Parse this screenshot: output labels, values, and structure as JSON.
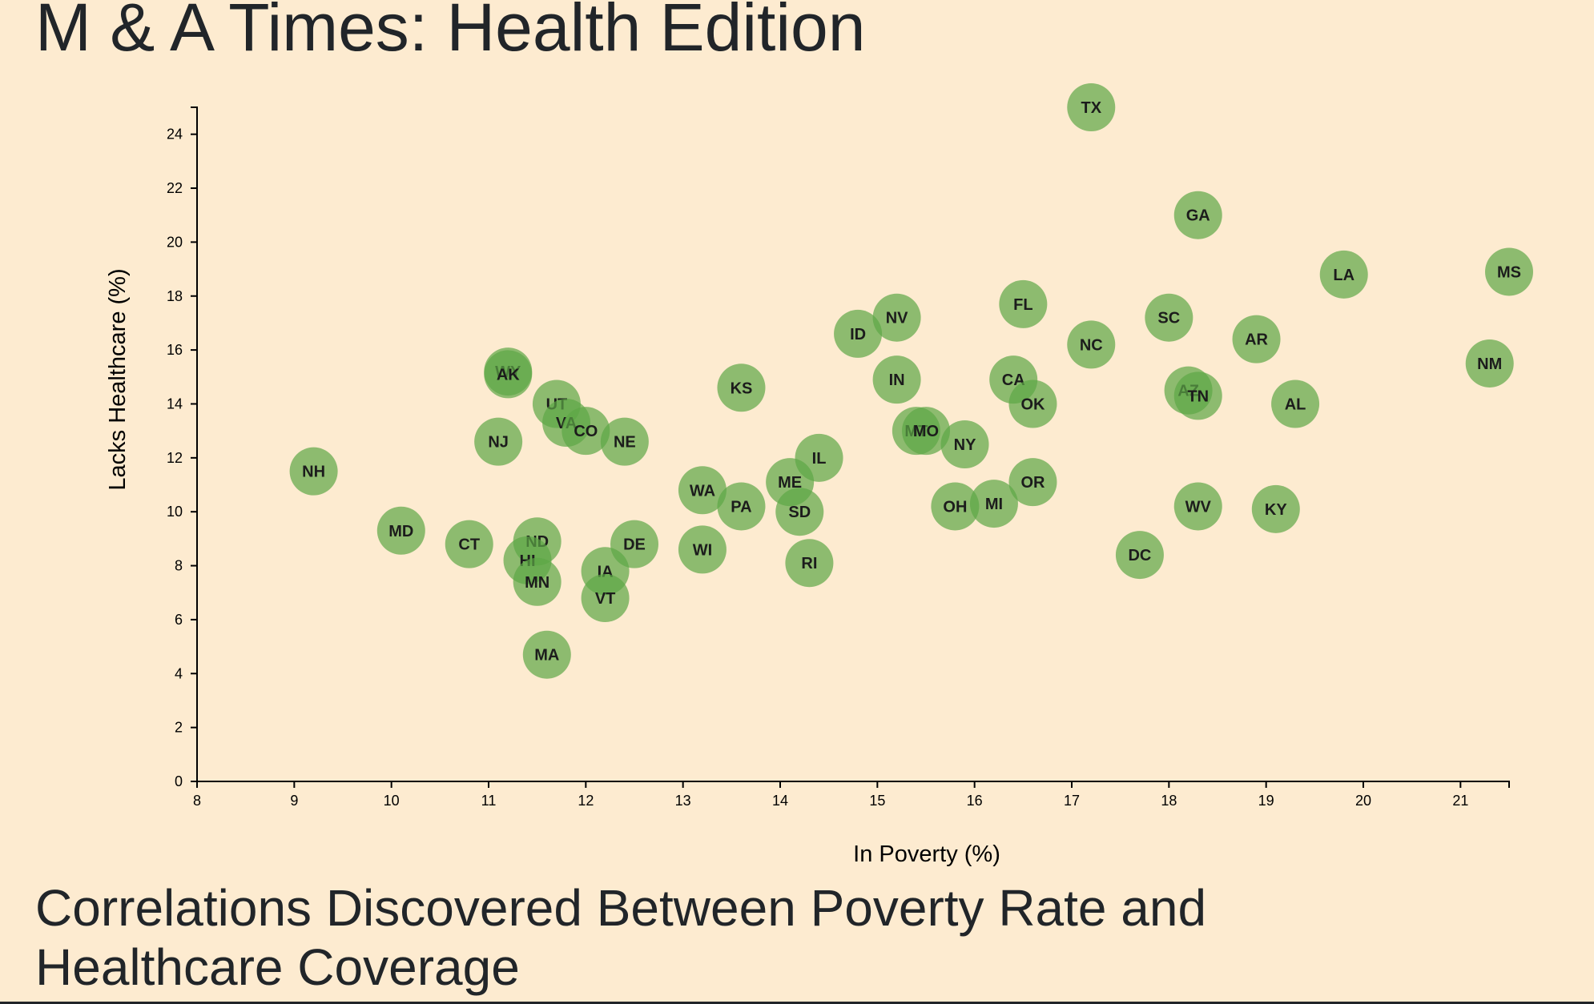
{
  "page": {
    "title": "M & A Times: Health Edition",
    "subheading": "Correlations Discovered Between Poverty Rate and Healthcare Coverage"
  },
  "colors": {
    "background": "#fdebd0",
    "point_fill": "#5ca646",
    "point_opacity": 0.7,
    "text": "#212529"
  },
  "chart_data": {
    "type": "scatter",
    "title": "",
    "xlabel": "In Poverty (%)",
    "ylabel": "Lacks Healthcare (%)",
    "xlim": [
      8,
      21.5
    ],
    "ylim": [
      0,
      25
    ],
    "xticks": [
      8,
      9,
      10,
      11,
      12,
      13,
      14,
      15,
      16,
      17,
      18,
      19,
      20,
      21
    ],
    "yticks": [
      0,
      2,
      4,
      6,
      8,
      10,
      12,
      14,
      16,
      18,
      20,
      22,
      24
    ],
    "grid": false,
    "legend": "none",
    "points": [
      {
        "label": "TX",
        "x": 17.2,
        "y": 25.0
      },
      {
        "label": "GA",
        "x": 18.3,
        "y": 21.0
      },
      {
        "label": "LA",
        "x": 19.8,
        "y": 18.8
      },
      {
        "label": "MS",
        "x": 21.5,
        "y": 18.9
      },
      {
        "label": "FL",
        "x": 16.5,
        "y": 17.7
      },
      {
        "label": "SC",
        "x": 18.0,
        "y": 17.2
      },
      {
        "label": "NV",
        "x": 15.2,
        "y": 17.2
      },
      {
        "label": "ID",
        "x": 14.8,
        "y": 16.6
      },
      {
        "label": "NC",
        "x": 17.2,
        "y": 16.2
      },
      {
        "label": "AR",
        "x": 18.9,
        "y": 16.4
      },
      {
        "label": "NM",
        "x": 21.3,
        "y": 15.5
      },
      {
        "label": "WY",
        "x": 11.2,
        "y": 15.2
      },
      {
        "label": "AK",
        "x": 11.2,
        "y": 15.1
      },
      {
        "label": "CA",
        "x": 16.4,
        "y": 14.9
      },
      {
        "label": "IN",
        "x": 15.2,
        "y": 14.9
      },
      {
        "label": "KS",
        "x": 13.6,
        "y": 14.6
      },
      {
        "label": "AZ",
        "x": 18.2,
        "y": 14.5
      },
      {
        "label": "TN",
        "x": 18.3,
        "y": 14.3
      },
      {
        "label": "OK",
        "x": 16.6,
        "y": 14.0
      },
      {
        "label": "AL",
        "x": 19.3,
        "y": 14.0
      },
      {
        "label": "UT",
        "x": 11.7,
        "y": 14.0
      },
      {
        "label": "VA",
        "x": 11.8,
        "y": 13.3
      },
      {
        "label": "CO",
        "x": 12.0,
        "y": 13.0
      },
      {
        "label": "MT",
        "x": 15.4,
        "y": 13.0
      },
      {
        "label": "MO",
        "x": 15.5,
        "y": 13.0
      },
      {
        "label": "NE",
        "x": 12.4,
        "y": 12.6
      },
      {
        "label": "NJ",
        "x": 11.1,
        "y": 12.6
      },
      {
        "label": "NY",
        "x": 15.9,
        "y": 12.5
      },
      {
        "label": "IL",
        "x": 14.4,
        "y": 12.0
      },
      {
        "label": "NH",
        "x": 9.2,
        "y": 11.5
      },
      {
        "label": "ME",
        "x": 14.1,
        "y": 11.1
      },
      {
        "label": "OR",
        "x": 16.6,
        "y": 11.1
      },
      {
        "label": "WA",
        "x": 13.2,
        "y": 10.8
      },
      {
        "label": "PA",
        "x": 13.6,
        "y": 10.2
      },
      {
        "label": "WV",
        "x": 18.3,
        "y": 10.2
      },
      {
        "label": "KY",
        "x": 19.1,
        "y": 10.1
      },
      {
        "label": "OH",
        "x": 15.8,
        "y": 10.2
      },
      {
        "label": "MI",
        "x": 16.2,
        "y": 10.3
      },
      {
        "label": "SD",
        "x": 14.2,
        "y": 10.0
      },
      {
        "label": "MD",
        "x": 10.1,
        "y": 9.3
      },
      {
        "label": "CT",
        "x": 10.8,
        "y": 8.8
      },
      {
        "label": "ND",
        "x": 11.5,
        "y": 8.9
      },
      {
        "label": "DE",
        "x": 12.5,
        "y": 8.8
      },
      {
        "label": "WI",
        "x": 13.2,
        "y": 8.6
      },
      {
        "label": "DC",
        "x": 17.7,
        "y": 8.4
      },
      {
        "label": "HI",
        "x": 11.4,
        "y": 8.2
      },
      {
        "label": "RI",
        "x": 14.3,
        "y": 8.1
      },
      {
        "label": "IA",
        "x": 12.2,
        "y": 7.8
      },
      {
        "label": "MN",
        "x": 11.5,
        "y": 7.4
      },
      {
        "label": "VT",
        "x": 12.2,
        "y": 6.8
      },
      {
        "label": "MA",
        "x": 11.6,
        "y": 4.7
      }
    ]
  }
}
